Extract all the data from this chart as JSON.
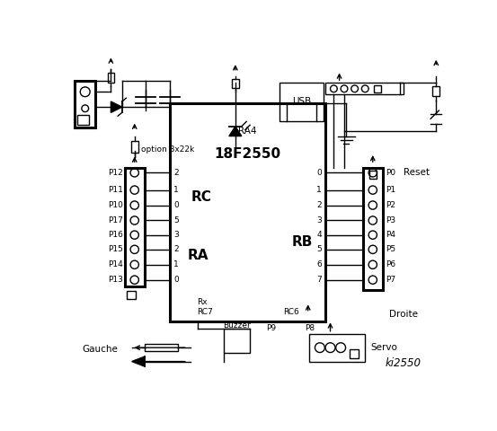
{
  "bg_color": "#ffffff",
  "title": "ki2550",
  "ic_label": "18F2550",
  "ic_sublabel": "RA4",
  "rc_label": "RC",
  "ra_label": "RA",
  "rb_label": "RB",
  "left_pins": [
    "P12",
    "P11",
    "P10",
    "P17",
    "P16",
    "P15",
    "P14",
    "P13"
  ],
  "rc_pin_labels": [
    "2",
    "1",
    "0",
    "5",
    "3",
    "2",
    "1",
    "0"
  ],
  "right_pins": [
    "P0",
    "P1",
    "P2",
    "P3",
    "P4",
    "P5",
    "P6",
    "P7"
  ],
  "rb_pin_labels": [
    "0",
    "1",
    "2",
    "3",
    "4",
    "5",
    "6",
    "7"
  ],
  "gauche_label": "Gauche",
  "droite_label": "Droite",
  "reset_label": "Reset",
  "option_label": "option 8x22k",
  "buzzer_label": "Buzzer",
  "p9_label": "P9",
  "p8_label": "P8",
  "servo_label": "Servo",
  "rc6_label": "RC6",
  "rc7_label": "RC7",
  "rx_label": "Rx"
}
